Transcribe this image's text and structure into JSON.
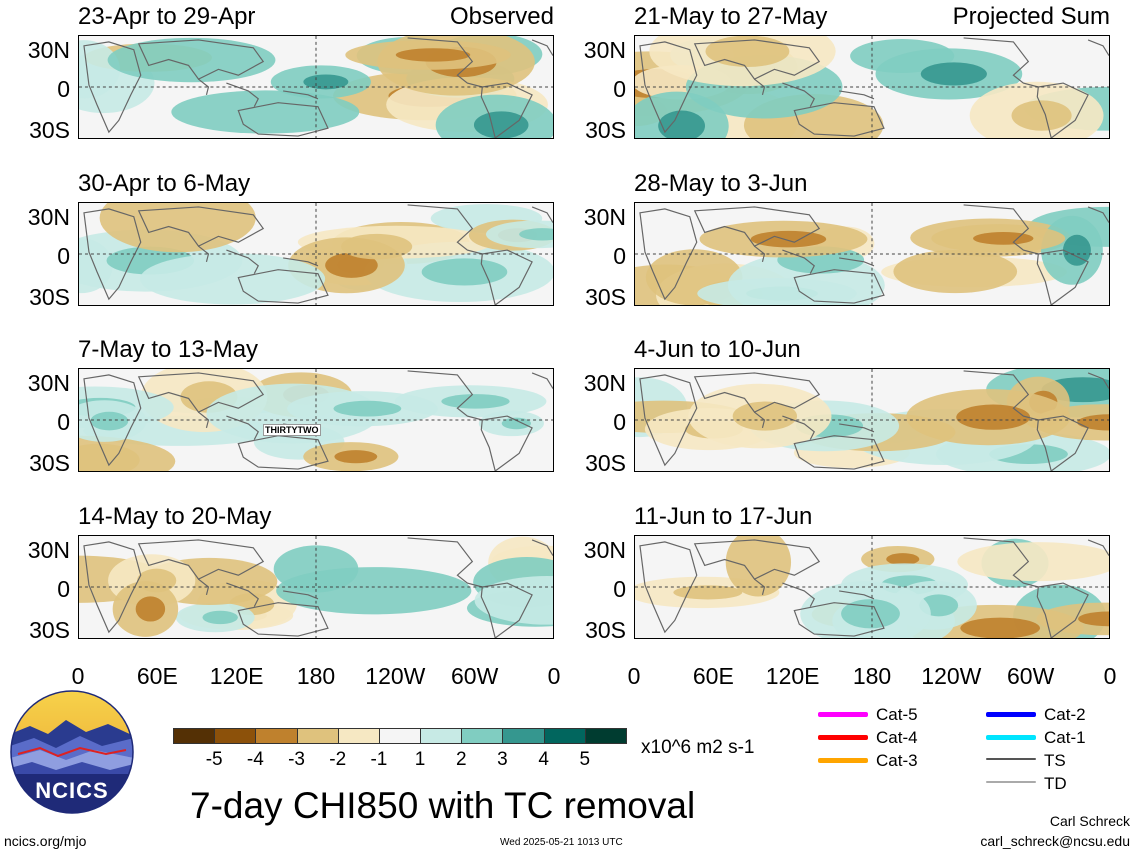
{
  "chart_data": {
    "type": "heatmap",
    "title": "7-day CHI850 with TC removal",
    "units": "x10^6 m2 s-1",
    "x_ticks": [
      "0",
      "60E",
      "120E",
      "180",
      "120W",
      "60W",
      "0"
    ],
    "y_ticks": [
      "30N",
      "0",
      "30S"
    ],
    "columns": [
      {
        "header": "Observed",
        "panels": [
          "23-Apr to 29-Apr",
          "30-Apr to 6-May",
          "7-May to 13-May",
          "14-May to 20-May"
        ]
      },
      {
        "header": "Projected Sum",
        "panels": [
          "21-May to 27-May",
          "28-May to 3-Jun",
          "4-Jun to 10-Jun",
          "11-Jun to 17-Jun"
        ]
      }
    ],
    "storm_label": "THIRTYTWO",
    "colorbar": {
      "levels": [
        "-5",
        "-4",
        "-3",
        "-2",
        "-1",
        "1",
        "2",
        "3",
        "4",
        "5"
      ],
      "colors": [
        "#543005",
        "#8c510a",
        "#bf812d",
        "#dfc27d",
        "#f6e8c3",
        "#f5f5f5",
        "#c7eae5",
        "#80cdc1",
        "#35978f",
        "#01665e",
        "#003c30"
      ]
    },
    "legend": [
      {
        "label": "Cat-5",
        "color": "#ff00ff"
      },
      {
        "label": "Cat-4",
        "color": "#ff0000"
      },
      {
        "label": "Cat-3",
        "color": "#ffa500"
      },
      {
        "label": "Cat-2",
        "color": "#0000ff"
      },
      {
        "label": "Cat-1",
        "color": "#00e5ff"
      },
      {
        "label": "TS",
        "color": "#555555"
      },
      {
        "label": "TD",
        "color": "#aaaaaa"
      }
    ]
  },
  "logo": {
    "text": "NCICS"
  },
  "footer": {
    "url": "ncics.org/mjo",
    "timestamp": "Wed 2025-05-21 1013 UTC",
    "author": "Carl Schreck",
    "email": "carl_schreck@ncsu.edu"
  }
}
